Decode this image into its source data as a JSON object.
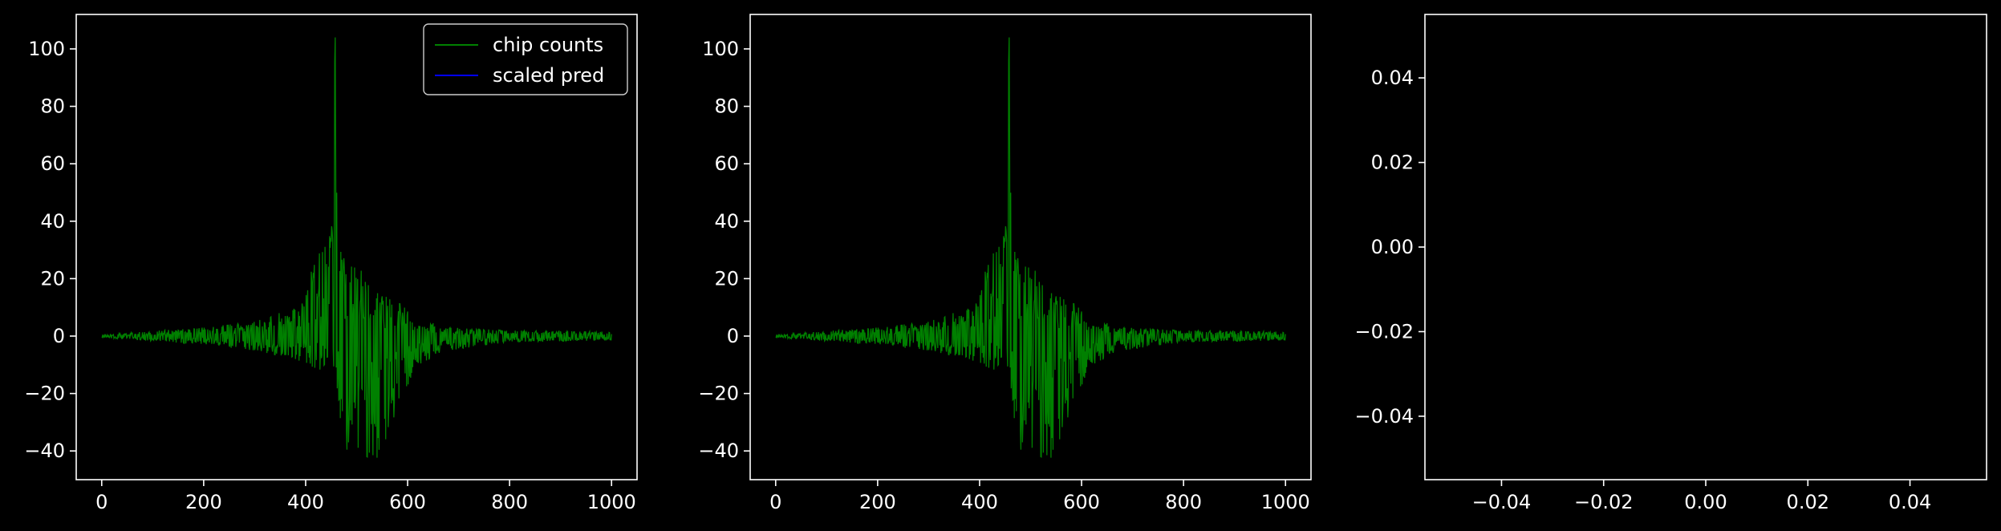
{
  "figure": {
    "background": "#000000",
    "axes_color": "#ffffff"
  },
  "chart_data": [
    {
      "type": "line",
      "title": "",
      "xlabel": "",
      "ylabel": "",
      "xlim": [
        -50,
        1050
      ],
      "ylim": [
        -50,
        112
      ],
      "xticks": [
        0,
        200,
        400,
        600,
        800,
        1000
      ],
      "xtick_labels": [
        "0",
        "200",
        "400",
        "600",
        "800",
        "1000"
      ],
      "yticks": [
        -40,
        -20,
        0,
        20,
        40,
        60,
        80,
        100
      ],
      "ytick_labels": [
        "−40",
        "−20",
        "0",
        "20",
        "40",
        "60",
        "80",
        "100"
      ],
      "legend": {
        "placement": "top-right",
        "entries": [
          "chip counts",
          "scaled pred"
        ]
      },
      "series": [
        {
          "name": "chip counts",
          "color": "#008000",
          "kind": "noisy_signal",
          "envelope_x": [
            0,
            200,
            300,
            380,
            430,
            450,
            458,
            470,
            500,
            540,
            580,
            620,
            680,
            800,
            1000
          ],
          "envelope_pos": [
            0.5,
            3,
            5,
            10,
            30,
            36,
            104,
            29,
            25,
            15,
            12,
            6,
            3,
            2,
            1.5
          ],
          "envelope_neg": [
            -0.5,
            -3,
            -5,
            -8,
            -12,
            -15,
            -10,
            -40,
            -40,
            -44,
            -25,
            -10,
            -5,
            -2,
            -1.5
          ]
        },
        {
          "name": "scaled pred",
          "color": "#0000ff",
          "values": []
        }
      ]
    },
    {
      "type": "line",
      "title": "",
      "xlabel": "",
      "ylabel": "",
      "xlim": [
        -50,
        1050
      ],
      "ylim": [
        -50,
        112
      ],
      "xticks": [
        0,
        200,
        400,
        600,
        800,
        1000
      ],
      "xtick_labels": [
        "0",
        "200",
        "400",
        "600",
        "800",
        "1000"
      ],
      "yticks": [
        -40,
        -20,
        0,
        20,
        40,
        60,
        80,
        100
      ],
      "ytick_labels": [
        "−40",
        "−20",
        "0",
        "20",
        "40",
        "60",
        "80",
        "100"
      ],
      "series": [
        {
          "color": "#008000",
          "kind": "noisy_signal",
          "envelope_x": [
            0,
            200,
            300,
            380,
            430,
            450,
            458,
            470,
            500,
            540,
            580,
            620,
            680,
            800,
            1000
          ],
          "envelope_pos": [
            0.5,
            3,
            5,
            10,
            30,
            36,
            104,
            29,
            25,
            15,
            12,
            6,
            3,
            2,
            1.5
          ],
          "envelope_neg": [
            -0.5,
            -3,
            -5,
            -8,
            -12,
            -15,
            -10,
            -40,
            -40,
            -44,
            -25,
            -10,
            -5,
            -2,
            -1.5
          ]
        }
      ]
    },
    {
      "type": "line",
      "title": "",
      "xlabel": "",
      "ylabel": "",
      "xlim": [
        -0.055,
        0.055
      ],
      "ylim": [
        -0.055,
        0.055
      ],
      "xticks": [
        -0.04,
        -0.02,
        0.0,
        0.02,
        0.04
      ],
      "xtick_labels": [
        "−0.04",
        "−0.02",
        "0.00",
        "0.02",
        "0.04"
      ],
      "yticks": [
        -0.04,
        -0.02,
        0.0,
        0.02,
        0.04
      ],
      "ytick_labels": [
        "−0.04",
        "−0.02",
        "0.00",
        "0.02",
        "0.04"
      ],
      "series": []
    }
  ]
}
